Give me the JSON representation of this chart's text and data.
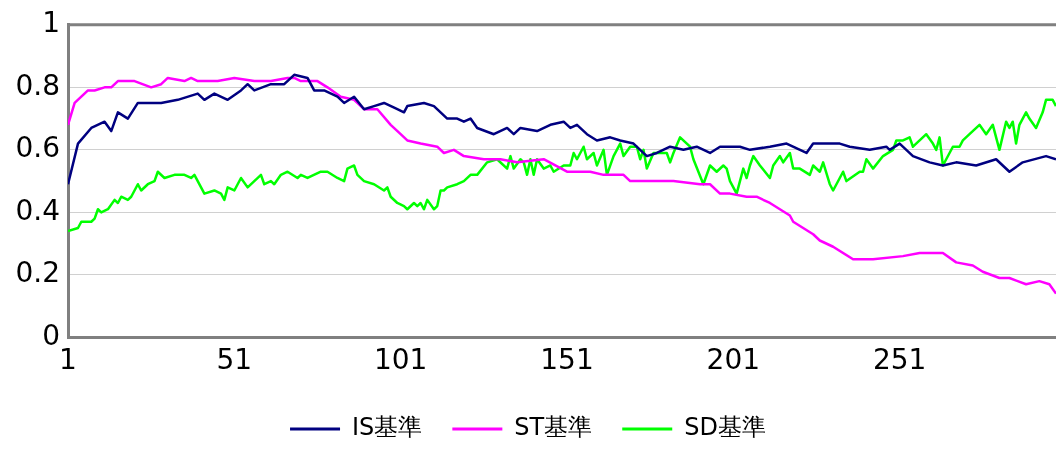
{
  "chart_data": {
    "type": "line",
    "xlim": [
      1,
      298
    ],
    "xticks": [
      1,
      51,
      101,
      151,
      201,
      251
    ],
    "ylim": [
      0,
      1
    ],
    "yticks": [
      0,
      0.2,
      0.4,
      0.6,
      0.8,
      1
    ],
    "grid": "y",
    "legend": "bottom",
    "marker": "none",
    "line_style": "solid",
    "series": [
      {
        "name": "IS基準",
        "color": "#000080",
        "x": [
          1,
          4,
          8,
          12,
          14,
          16,
          19,
          22,
          25,
          29,
          34,
          40,
          42,
          45,
          49,
          53,
          55,
          57,
          62,
          66,
          69,
          73,
          75,
          78,
          82,
          84,
          87,
          90,
          93,
          96,
          100,
          102,
          103,
          108,
          111,
          115,
          118,
          120,
          122,
          124,
          129,
          133,
          135,
          137,
          142,
          146,
          150,
          152,
          154,
          157,
          160,
          164,
          167,
          171,
          175,
          178,
          182,
          186,
          190,
          194,
          197,
          200,
          203,
          206,
          212,
          217,
          223,
          225,
          233,
          236,
          242,
          247,
          248,
          251,
          255,
          260,
          264,
          268,
          274,
          280,
          284,
          288,
          295,
          298
        ],
        "values": [
          0.49,
          0.62,
          0.67,
          0.69,
          0.66,
          0.72,
          0.7,
          0.75,
          0.75,
          0.75,
          0.76,
          0.78,
          0.76,
          0.78,
          0.76,
          0.79,
          0.81,
          0.79,
          0.81,
          0.81,
          0.84,
          0.83,
          0.79,
          0.79,
          0.77,
          0.75,
          0.77,
          0.73,
          0.74,
          0.75,
          0.73,
          0.72,
          0.74,
          0.75,
          0.74,
          0.7,
          0.7,
          0.69,
          0.7,
          0.67,
          0.65,
          0.67,
          0.65,
          0.67,
          0.66,
          0.68,
          0.69,
          0.67,
          0.68,
          0.65,
          0.63,
          0.64,
          0.63,
          0.62,
          0.58,
          0.59,
          0.61,
          0.6,
          0.61,
          0.59,
          0.61,
          0.61,
          0.61,
          0.6,
          0.61,
          0.62,
          0.59,
          0.62,
          0.62,
          0.61,
          0.6,
          0.61,
          0.6,
          0.62,
          0.58,
          0.56,
          0.55,
          0.56,
          0.55,
          0.57,
          0.53,
          0.56,
          0.58,
          0.57
        ]
      },
      {
        "name": "ST基準",
        "color": "#ff00ff",
        "x": [
          1,
          3,
          7,
          9,
          12,
          14,
          16,
          21,
          26,
          29,
          31,
          36,
          38,
          40,
          46,
          51,
          57,
          62,
          67,
          69,
          71,
          76,
          79,
          83,
          87,
          90,
          94,
          98,
          101,
          103,
          107,
          112,
          114,
          117,
          120,
          126,
          131,
          136,
          144,
          151,
          158,
          162,
          168,
          170,
          175,
          178,
          183,
          191,
          194,
          197,
          200,
          205,
          208,
          212,
          218,
          219,
          225,
          227,
          231,
          237,
          243,
          252,
          257,
          264,
          268,
          273,
          276,
          281,
          284,
          289,
          293,
          296,
          298
        ],
        "values": [
          0.68,
          0.75,
          0.79,
          0.79,
          0.8,
          0.8,
          0.82,
          0.82,
          0.8,
          0.81,
          0.83,
          0.82,
          0.83,
          0.82,
          0.82,
          0.83,
          0.82,
          0.82,
          0.83,
          0.83,
          0.82,
          0.82,
          0.8,
          0.77,
          0.76,
          0.73,
          0.73,
          0.68,
          0.65,
          0.63,
          0.62,
          0.61,
          0.59,
          0.6,
          0.58,
          0.57,
          0.57,
          0.56,
          0.57,
          0.53,
          0.53,
          0.52,
          0.52,
          0.5,
          0.5,
          0.5,
          0.5,
          0.49,
          0.49,
          0.46,
          0.46,
          0.45,
          0.45,
          0.43,
          0.39,
          0.37,
          0.33,
          0.31,
          0.29,
          0.25,
          0.25,
          0.26,
          0.27,
          0.27,
          0.24,
          0.23,
          0.21,
          0.19,
          0.19,
          0.17,
          0.18,
          0.17,
          0.14
        ]
      },
      {
        "name": "SD基準",
        "color": "#00ff00",
        "x": [
          1,
          4,
          5,
          8,
          9,
          10,
          11,
          13,
          15,
          16,
          17,
          19,
          20,
          22,
          23,
          25,
          27,
          28,
          30,
          33,
          36,
          38,
          39,
          42,
          45,
          47,
          48,
          49,
          51,
          53,
          55,
          57,
          59,
          60,
          62,
          63,
          65,
          67,
          70,
          71,
          73,
          77,
          79,
          82,
          84,
          85,
          87,
          88,
          90,
          93,
          96,
          97,
          98,
          100,
          102,
          103,
          105,
          106,
          107,
          108,
          109,
          111,
          112,
          113,
          114,
          115,
          118,
          120,
          122,
          124,
          127,
          130,
          133,
          134,
          135,
          137,
          138,
          139,
          140,
          141,
          142,
          144,
          146,
          147,
          150,
          152,
          153,
          154,
          156,
          157,
          159,
          160,
          162,
          163,
          165,
          167,
          168,
          170,
          172,
          173,
          174,
          175,
          177,
          181,
          182,
          183,
          185,
          188,
          189,
          192,
          194,
          196,
          198,
          199,
          200,
          202,
          204,
          205,
          206,
          207,
          209,
          212,
          213,
          215,
          216,
          218,
          219,
          221,
          224,
          225,
          227,
          228,
          230,
          231,
          234,
          235,
          239,
          240,
          241,
          243,
          246,
          249,
          250,
          252,
          254,
          255,
          259,
          261,
          262,
          263,
          264,
          265,
          267,
          269,
          270,
          272,
          275,
          277,
          279,
          281,
          283,
          284,
          285,
          286,
          287,
          289,
          290,
          292,
          294,
          295,
          297,
          298
        ],
        "values": [
          0.34,
          0.35,
          0.37,
          0.37,
          0.38,
          0.41,
          0.4,
          0.41,
          0.44,
          0.43,
          0.45,
          0.44,
          0.45,
          0.49,
          0.47,
          0.49,
          0.5,
          0.53,
          0.51,
          0.52,
          0.52,
          0.51,
          0.52,
          0.46,
          0.47,
          0.46,
          0.44,
          0.48,
          0.47,
          0.51,
          0.48,
          0.5,
          0.52,
          0.49,
          0.5,
          0.49,
          0.52,
          0.53,
          0.51,
          0.52,
          0.51,
          0.53,
          0.53,
          0.51,
          0.5,
          0.54,
          0.55,
          0.52,
          0.5,
          0.49,
          0.47,
          0.48,
          0.45,
          0.43,
          0.42,
          0.41,
          0.43,
          0.42,
          0.43,
          0.41,
          0.44,
          0.41,
          0.42,
          0.47,
          0.47,
          0.48,
          0.49,
          0.5,
          0.52,
          0.52,
          0.56,
          0.57,
          0.54,
          0.58,
          0.54,
          0.57,
          0.56,
          0.52,
          0.57,
          0.52,
          0.57,
          0.54,
          0.55,
          0.53,
          0.55,
          0.55,
          0.59,
          0.57,
          0.61,
          0.57,
          0.59,
          0.55,
          0.6,
          0.52,
          0.58,
          0.62,
          0.58,
          0.61,
          0.61,
          0.57,
          0.6,
          0.54,
          0.59,
          0.59,
          0.56,
          0.59,
          0.64,
          0.61,
          0.57,
          0.49,
          0.55,
          0.53,
          0.55,
          0.54,
          0.5,
          0.46,
          0.54,
          0.51,
          0.55,
          0.58,
          0.55,
          0.51,
          0.55,
          0.58,
          0.56,
          0.59,
          0.54,
          0.54,
          0.52,
          0.55,
          0.53,
          0.56,
          0.49,
          0.47,
          0.53,
          0.5,
          0.53,
          0.53,
          0.57,
          0.54,
          0.58,
          0.6,
          0.63,
          0.63,
          0.64,
          0.61,
          0.65,
          0.62,
          0.6,
          0.64,
          0.55,
          0.57,
          0.61,
          0.61,
          0.63,
          0.65,
          0.68,
          0.65,
          0.68,
          0.6,
          0.69,
          0.67,
          0.69,
          0.62,
          0.68,
          0.72,
          0.7,
          0.67,
          0.72,
          0.76,
          0.76,
          0.74
        ]
      }
    ]
  }
}
